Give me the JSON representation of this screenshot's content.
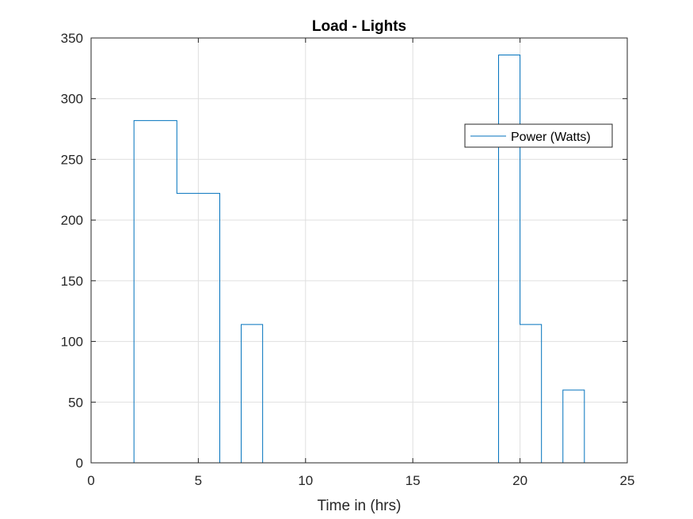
{
  "chart_data": {
    "type": "line",
    "title": "Load - Lights",
    "xlabel": "Time in (hrs)",
    "ylabel": "",
    "xlim": [
      0,
      25
    ],
    "ylim": [
      0,
      350
    ],
    "xticks": [
      0,
      5,
      10,
      15,
      20,
      25
    ],
    "yticks": [
      0,
      50,
      100,
      150,
      200,
      250,
      300,
      350
    ],
    "grid": true,
    "legend_position": "top-right",
    "step": true,
    "series": [
      {
        "name": "Power (Watts)",
        "color": "#0072BD",
        "x": [
          0,
          1,
          2,
          3,
          4,
          5,
          6,
          7,
          8,
          9,
          10,
          11,
          12,
          13,
          14,
          15,
          16,
          17,
          18,
          19,
          20,
          21,
          22,
          23,
          24
        ],
        "values": [
          0,
          0,
          282,
          282,
          222,
          222,
          0,
          114,
          0,
          0,
          0,
          0,
          0,
          0,
          0,
          0,
          0,
          0,
          0,
          336,
          114,
          0,
          60,
          0,
          0
        ]
      }
    ]
  }
}
